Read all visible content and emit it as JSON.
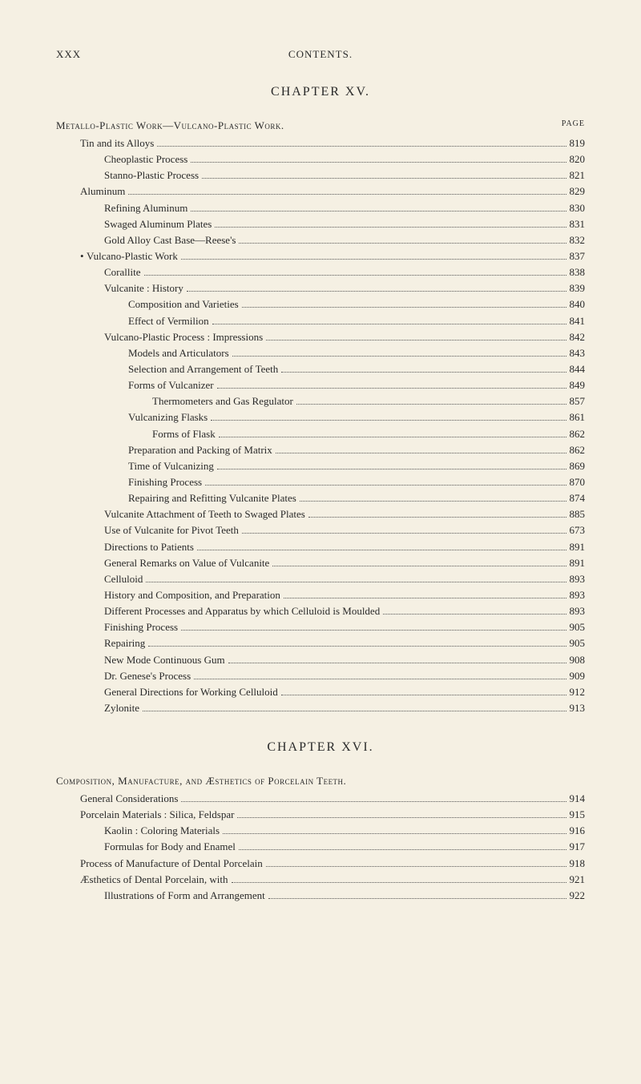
{
  "header": {
    "pageNumeral": "XXX",
    "contentsLabel": "CONTENTS."
  },
  "chapters": [
    {
      "title": "CHAPTER XV.",
      "heading": "Metallo-Plastic Work—Vulcano-Plastic Work.",
      "pageColLabel": "PAGE",
      "entries": [
        {
          "indent": 1,
          "label": "Tin and its Alloys",
          "page": "819"
        },
        {
          "indent": 2,
          "label": "Cheoplastic Process",
          "page": "820"
        },
        {
          "indent": 2,
          "label": "Stanno-Plastic Process",
          "page": "821"
        },
        {
          "indent": 1,
          "label": "Aluminum",
          "page": "829"
        },
        {
          "indent": 2,
          "label": "Refining Aluminum",
          "page": "830"
        },
        {
          "indent": 2,
          "label": "Swaged Aluminum Plates",
          "page": "831"
        },
        {
          "indent": 2,
          "label": "Gold Alloy Cast Base—Reese's",
          "page": "832"
        },
        {
          "indent": 1,
          "label": "Vulcano-Plastic Work",
          "page": "837",
          "bullet": "•"
        },
        {
          "indent": 2,
          "label": "Corallite",
          "page": "838"
        },
        {
          "indent": 2,
          "label": "Vulcanite : History",
          "page": "839"
        },
        {
          "indent": 3,
          "label": "Composition and Varieties",
          "page": "840"
        },
        {
          "indent": 3,
          "label": "Effect of Vermilion",
          "page": "841"
        },
        {
          "indent": 2,
          "label": "Vulcano-Plastic Process : Impressions",
          "page": "842"
        },
        {
          "indent": 3,
          "label": "Models and Articulators",
          "page": "843"
        },
        {
          "indent": 3,
          "label": "Selection and Arrangement of Teeth",
          "page": "844"
        },
        {
          "indent": 3,
          "label": "Forms of Vulcanizer",
          "page": "849"
        },
        {
          "indent": 4,
          "label": "Thermometers and Gas Regulator",
          "page": "857"
        },
        {
          "indent": 3,
          "label": "Vulcanizing Flasks",
          "page": "861"
        },
        {
          "indent": 4,
          "label": "Forms of Flask",
          "page": "862"
        },
        {
          "indent": 3,
          "label": "Preparation and Packing of Matrix",
          "page": "862"
        },
        {
          "indent": 3,
          "label": "Time of Vulcanizing",
          "page": "869"
        },
        {
          "indent": 3,
          "label": "Finishing Process",
          "page": "870"
        },
        {
          "indent": 3,
          "label": "Repairing and Refitting Vulcanite Plates",
          "page": "874"
        },
        {
          "indent": 2,
          "label": "Vulcanite Attachment of Teeth to Swaged Plates",
          "page": "885"
        },
        {
          "indent": 2,
          "label": "Use of Vulcanite for Pivot Teeth",
          "page": "673"
        },
        {
          "indent": 2,
          "label": "Directions to Patients",
          "page": "891"
        },
        {
          "indent": 2,
          "label": "General Remarks on Value of Vulcanite",
          "page": "891"
        },
        {
          "indent": 2,
          "label": "Celluloid",
          "page": "893"
        },
        {
          "indent": 2,
          "label": "History and Composition, and Preparation",
          "page": "893"
        },
        {
          "indent": 2,
          "label": "Different Processes and Apparatus by which Celluloid is Moulded",
          "page": "893"
        },
        {
          "indent": 2,
          "label": "Finishing Process",
          "page": "905"
        },
        {
          "indent": 2,
          "label": "Repairing",
          "page": "905"
        },
        {
          "indent": 2,
          "label": "New Mode Continuous Gum",
          "page": "908"
        },
        {
          "indent": 2,
          "label": "Dr. Genese's Process",
          "page": "909"
        },
        {
          "indent": 2,
          "label": "General Directions for Working Celluloid",
          "page": "912"
        },
        {
          "indent": 2,
          "label": "Zylonite",
          "page": "913"
        }
      ]
    },
    {
      "title": "CHAPTER XVI.",
      "heading": "Composition, Manufacture, and Æsthetics of Porcelain Teeth.",
      "pageColLabel": "",
      "entries": [
        {
          "indent": 1,
          "label": "General Considerations",
          "page": "914"
        },
        {
          "indent": 1,
          "label": "Porcelain Materials : Silica, Feldspar",
          "page": "915"
        },
        {
          "indent": 2,
          "label": "Kaolin : Coloring Materials",
          "page": "916"
        },
        {
          "indent": 2,
          "label": "Formulas for Body and Enamel",
          "page": "917"
        },
        {
          "indent": 1,
          "label": "Process of Manufacture of Dental Porcelain",
          "page": "918"
        },
        {
          "indent": 1,
          "label": "Æsthetics of Dental Porcelain, with",
          "page": "921"
        },
        {
          "indent": 2,
          "label": "Illustrations of Form and Arrangement",
          "page": "922"
        }
      ]
    }
  ],
  "style": {
    "backgroundColor": "#f5f0e3",
    "textColor": "#2a2a2a",
    "fontFamily": "Times New Roman, Georgia, serif",
    "bodyFontSize": 13,
    "chapterTitleFontSize": 16,
    "lineHeight": 1.55,
    "indentStepPx": 30,
    "dotColor": "#555"
  }
}
